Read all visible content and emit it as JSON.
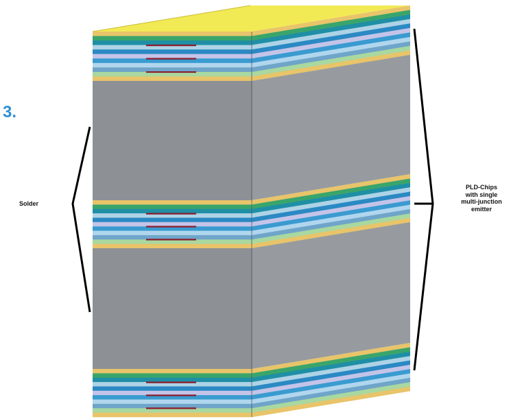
{
  "step_number": "3.",
  "labels": {
    "solder": "Solder",
    "chip_lines": [
      "PLD-Chips",
      "with single",
      "multi-junction",
      "emitter"
    ]
  },
  "colors": {
    "background": "#ffffff",
    "step_number": "#2e8fd6",
    "solder_gray": "#8d9196",
    "solder_gray_side": "#979ba0",
    "yellow_top": "#f2ea55",
    "emitter_line": "#8b1c2b",
    "bracket": "#000000"
  },
  "layer_stripes": [
    "#e8c46a",
    "#3aa56b",
    "#1f8fa6",
    "#aed3e6",
    "#2b89c3",
    "#c4c4e8",
    "#3a9bd0",
    "#b0d6ee",
    "#6fa5c9",
    "#a9d8a0",
    "#e8c46a"
  ]
}
